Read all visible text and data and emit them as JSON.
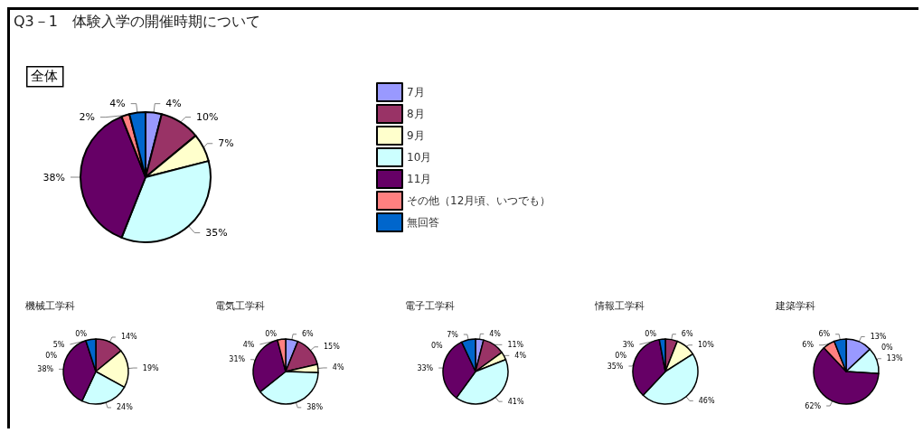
{
  "chart_data": {
    "type": "pie",
    "annotations": [
      "Q3－1　体験入学の開催時期について"
    ],
    "legend": "right",
    "categories": [
      "7月",
      "8月",
      "9月",
      "10月",
      "11月",
      "その他（12月頃、いつでも）",
      "無回答"
    ],
    "colors": [
      "#9999ff",
      "#993366",
      "#ffffcc",
      "#ccffff",
      "#660066",
      "#ff8080",
      "#0066cc"
    ],
    "series": [
      {
        "name": "全体",
        "values": [
          4,
          10,
          7,
          35,
          38,
          2,
          4
        ],
        "value_labels": [
          "4%",
          "10%",
          "7%",
          "35%",
          "38%",
          "2%",
          "4%"
        ]
      },
      {
        "name": "機械工学科",
        "values": [
          0,
          14,
          19,
          24,
          38,
          0,
          5
        ],
        "value_labels": [
          "0%",
          "14%",
          "19%",
          "24%",
          "38%",
          "0%",
          "5%"
        ]
      },
      {
        "name": "電気工学科",
        "values": [
          6,
          15,
          4,
          38,
          31,
          4,
          0
        ],
        "value_labels": [
          "6%",
          "15%",
          "4%",
          "38%",
          "31%",
          "4%",
          "0%"
        ]
      },
      {
        "name": "電子工学科",
        "values": [
          4,
          11,
          4,
          41,
          33,
          0,
          7
        ],
        "value_labels": [
          "4%",
          "11%",
          "4%",
          "41%",
          "33%",
          "0%",
          "7%"
        ]
      },
      {
        "name": "情報工学科",
        "values": [
          0,
          6,
          10,
          46,
          35,
          0,
          3
        ],
        "value_labels": [
          "0%",
          "6%",
          "10%",
          "46%",
          "35%",
          "0%",
          "3%"
        ]
      },
      {
        "name": "建築学科",
        "values": [
          13,
          0,
          0,
          13,
          62,
          6,
          6
        ],
        "value_labels": [
          "13%",
          null,
          "0%",
          "13%",
          "62%",
          "6%",
          "6%"
        ]
      }
    ]
  }
}
